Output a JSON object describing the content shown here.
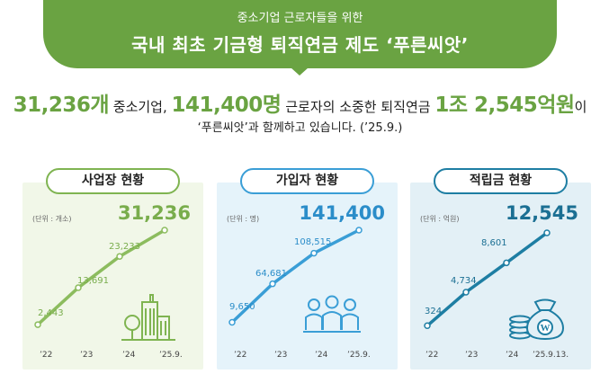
{
  "banner": {
    "subtitle": "중소기업 근로자들을 위한",
    "title": "국내 최초 기금형 퇴직연금 제도 ‘푸른씨앗’"
  },
  "headline": {
    "companies": "31,236개",
    "t1": " 중소기업, ",
    "workers": "141,400명",
    "t2": " 근로자의 소중한 퇴직연금 ",
    "amount": "1조 2,545억원",
    "t3": "이",
    "line2": "‘푸른씨앗’과 함께하고 있습니다. (’25.9.)"
  },
  "colors": {
    "banner": "#6aa342",
    "panel1_line": "#8cbc5e",
    "panel2_line": "#3a9ed6",
    "panel3_line": "#1e7ea3"
  },
  "chart_data": [
    {
      "type": "line",
      "title": "사업장 현황",
      "unit": "(단위 : 개소)",
      "total": "31,236",
      "categories": [
        "’22",
        "’23",
        "’24",
        "’25.9."
      ],
      "values": [
        2443,
        13691,
        23233,
        31236
      ],
      "labels": [
        "2,443",
        "13,691",
        "23,233",
        ""
      ],
      "icon": "buildings-icon"
    },
    {
      "type": "line",
      "title": "가입자 현황",
      "unit": "(단위 : 명)",
      "total": "141,400",
      "categories": [
        "’22",
        "’23",
        "’24",
        "’25.9."
      ],
      "values": [
        9650,
        64681,
        108515,
        141400
      ],
      "labels": [
        "9,650",
        "64,681",
        "108,515",
        ""
      ],
      "icon": "people-icon"
    },
    {
      "type": "line",
      "title": "적립금 현황",
      "unit": "(단위 : 억원)",
      "total": "12,545",
      "categories": [
        "’22",
        "’23",
        "’24",
        "’25.9.13."
      ],
      "values": [
        324,
        4734,
        8601,
        12545
      ],
      "labels": [
        "324",
        "4,734",
        "8,601",
        ""
      ],
      "icon": "money-bag-icon"
    }
  ]
}
